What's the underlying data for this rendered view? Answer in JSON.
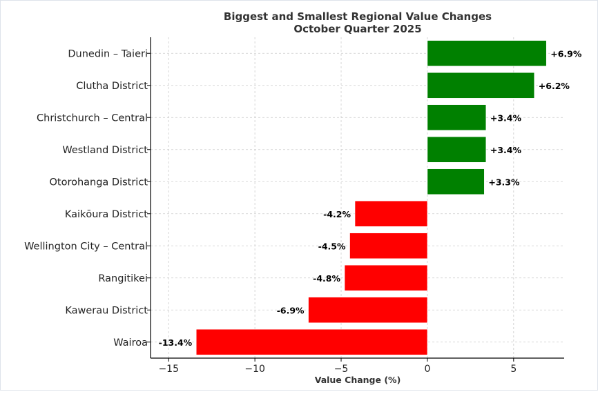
{
  "chart_data": {
    "type": "bar",
    "orientation": "horizontal",
    "title": "Biggest and Smallest Regional Value Changes",
    "subtitle": "October Quarter 2025",
    "xlabel": "Value Change (%)",
    "ylabel": "",
    "xlim": [
      -16.05,
      7.93
    ],
    "xticks": [
      -15,
      -10,
      -5,
      0,
      5
    ],
    "xtick_labels": [
      "−15",
      "−10",
      "−5",
      "0",
      "5"
    ],
    "grid": true,
    "categories": [
      "Dunedin – Taieri",
      "Clutha District",
      "Christchurch – Central",
      "Westland District",
      "Otorohanga District",
      "Kaikōura District",
      "Wellington City – Central",
      "Rangitikei",
      "Kawerau District",
      "Wairoa"
    ],
    "values": [
      6.9,
      6.2,
      3.4,
      3.4,
      3.3,
      -4.2,
      -4.5,
      -4.8,
      -6.9,
      -13.4
    ],
    "data_labels": [
      "+6.9%",
      "+6.2%",
      "+3.4%",
      "+3.4%",
      "+3.3%",
      "-4.2%",
      "-4.5%",
      "-4.8%",
      "-6.9%",
      "-13.4%"
    ],
    "colors": {
      "positive": "#008000",
      "negative": "#ff0000"
    }
  }
}
